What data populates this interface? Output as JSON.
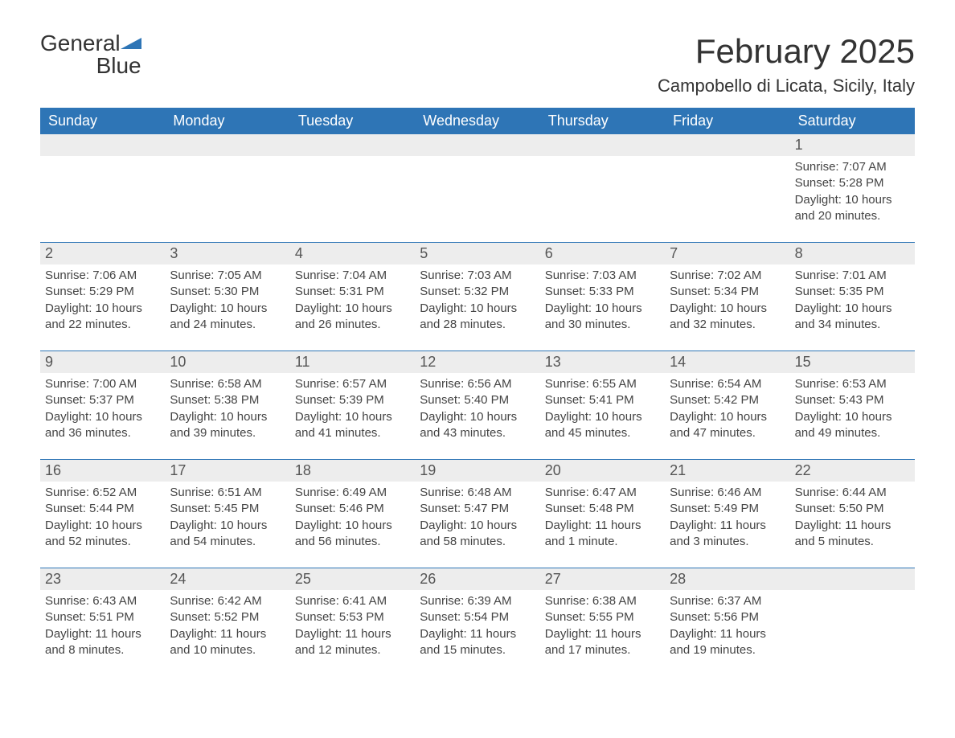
{
  "logo": {
    "text_line1": "General",
    "text_line2": "Blue"
  },
  "title": "February 2025",
  "location": "Campobello di Licata, Sicily, Italy",
  "colors": {
    "header_bg": "#2e75b6",
    "header_text": "#ffffff",
    "daynum_bg": "#ededed",
    "body_text": "#444444",
    "page_bg": "#ffffff",
    "logo_blue": "#2e75b6"
  },
  "weekdays": [
    "Sunday",
    "Monday",
    "Tuesday",
    "Wednesday",
    "Thursday",
    "Friday",
    "Saturday"
  ],
  "weeks": [
    [
      {
        "day": "",
        "sunrise": "",
        "sunset": "",
        "daylight": ""
      },
      {
        "day": "",
        "sunrise": "",
        "sunset": "",
        "daylight": ""
      },
      {
        "day": "",
        "sunrise": "",
        "sunset": "",
        "daylight": ""
      },
      {
        "day": "",
        "sunrise": "",
        "sunset": "",
        "daylight": ""
      },
      {
        "day": "",
        "sunrise": "",
        "sunset": "",
        "daylight": ""
      },
      {
        "day": "",
        "sunrise": "",
        "sunset": "",
        "daylight": ""
      },
      {
        "day": "1",
        "sunrise": "Sunrise: 7:07 AM",
        "sunset": "Sunset: 5:28 PM",
        "daylight": "Daylight: 10 hours and 20 minutes."
      }
    ],
    [
      {
        "day": "2",
        "sunrise": "Sunrise: 7:06 AM",
        "sunset": "Sunset: 5:29 PM",
        "daylight": "Daylight: 10 hours and 22 minutes."
      },
      {
        "day": "3",
        "sunrise": "Sunrise: 7:05 AM",
        "sunset": "Sunset: 5:30 PM",
        "daylight": "Daylight: 10 hours and 24 minutes."
      },
      {
        "day": "4",
        "sunrise": "Sunrise: 7:04 AM",
        "sunset": "Sunset: 5:31 PM",
        "daylight": "Daylight: 10 hours and 26 minutes."
      },
      {
        "day": "5",
        "sunrise": "Sunrise: 7:03 AM",
        "sunset": "Sunset: 5:32 PM",
        "daylight": "Daylight: 10 hours and 28 minutes."
      },
      {
        "day": "6",
        "sunrise": "Sunrise: 7:03 AM",
        "sunset": "Sunset: 5:33 PM",
        "daylight": "Daylight: 10 hours and 30 minutes."
      },
      {
        "day": "7",
        "sunrise": "Sunrise: 7:02 AM",
        "sunset": "Sunset: 5:34 PM",
        "daylight": "Daylight: 10 hours and 32 minutes."
      },
      {
        "day": "8",
        "sunrise": "Sunrise: 7:01 AM",
        "sunset": "Sunset: 5:35 PM",
        "daylight": "Daylight: 10 hours and 34 minutes."
      }
    ],
    [
      {
        "day": "9",
        "sunrise": "Sunrise: 7:00 AM",
        "sunset": "Sunset: 5:37 PM",
        "daylight": "Daylight: 10 hours and 36 minutes."
      },
      {
        "day": "10",
        "sunrise": "Sunrise: 6:58 AM",
        "sunset": "Sunset: 5:38 PM",
        "daylight": "Daylight: 10 hours and 39 minutes."
      },
      {
        "day": "11",
        "sunrise": "Sunrise: 6:57 AM",
        "sunset": "Sunset: 5:39 PM",
        "daylight": "Daylight: 10 hours and 41 minutes."
      },
      {
        "day": "12",
        "sunrise": "Sunrise: 6:56 AM",
        "sunset": "Sunset: 5:40 PM",
        "daylight": "Daylight: 10 hours and 43 minutes."
      },
      {
        "day": "13",
        "sunrise": "Sunrise: 6:55 AM",
        "sunset": "Sunset: 5:41 PM",
        "daylight": "Daylight: 10 hours and 45 minutes."
      },
      {
        "day": "14",
        "sunrise": "Sunrise: 6:54 AM",
        "sunset": "Sunset: 5:42 PM",
        "daylight": "Daylight: 10 hours and 47 minutes."
      },
      {
        "day": "15",
        "sunrise": "Sunrise: 6:53 AM",
        "sunset": "Sunset: 5:43 PM",
        "daylight": "Daylight: 10 hours and 49 minutes."
      }
    ],
    [
      {
        "day": "16",
        "sunrise": "Sunrise: 6:52 AM",
        "sunset": "Sunset: 5:44 PM",
        "daylight": "Daylight: 10 hours and 52 minutes."
      },
      {
        "day": "17",
        "sunrise": "Sunrise: 6:51 AM",
        "sunset": "Sunset: 5:45 PM",
        "daylight": "Daylight: 10 hours and 54 minutes."
      },
      {
        "day": "18",
        "sunrise": "Sunrise: 6:49 AM",
        "sunset": "Sunset: 5:46 PM",
        "daylight": "Daylight: 10 hours and 56 minutes."
      },
      {
        "day": "19",
        "sunrise": "Sunrise: 6:48 AM",
        "sunset": "Sunset: 5:47 PM",
        "daylight": "Daylight: 10 hours and 58 minutes."
      },
      {
        "day": "20",
        "sunrise": "Sunrise: 6:47 AM",
        "sunset": "Sunset: 5:48 PM",
        "daylight": "Daylight: 11 hours and 1 minute."
      },
      {
        "day": "21",
        "sunrise": "Sunrise: 6:46 AM",
        "sunset": "Sunset: 5:49 PM",
        "daylight": "Daylight: 11 hours and 3 minutes."
      },
      {
        "day": "22",
        "sunrise": "Sunrise: 6:44 AM",
        "sunset": "Sunset: 5:50 PM",
        "daylight": "Daylight: 11 hours and 5 minutes."
      }
    ],
    [
      {
        "day": "23",
        "sunrise": "Sunrise: 6:43 AM",
        "sunset": "Sunset: 5:51 PM",
        "daylight": "Daylight: 11 hours and 8 minutes."
      },
      {
        "day": "24",
        "sunrise": "Sunrise: 6:42 AM",
        "sunset": "Sunset: 5:52 PM",
        "daylight": "Daylight: 11 hours and 10 minutes."
      },
      {
        "day": "25",
        "sunrise": "Sunrise: 6:41 AM",
        "sunset": "Sunset: 5:53 PM",
        "daylight": "Daylight: 11 hours and 12 minutes."
      },
      {
        "day": "26",
        "sunrise": "Sunrise: 6:39 AM",
        "sunset": "Sunset: 5:54 PM",
        "daylight": "Daylight: 11 hours and 15 minutes."
      },
      {
        "day": "27",
        "sunrise": "Sunrise: 6:38 AM",
        "sunset": "Sunset: 5:55 PM",
        "daylight": "Daylight: 11 hours and 17 minutes."
      },
      {
        "day": "28",
        "sunrise": "Sunrise: 6:37 AM",
        "sunset": "Sunset: 5:56 PM",
        "daylight": "Daylight: 11 hours and 19 minutes."
      },
      {
        "day": "",
        "sunrise": "",
        "sunset": "",
        "daylight": ""
      }
    ]
  ]
}
